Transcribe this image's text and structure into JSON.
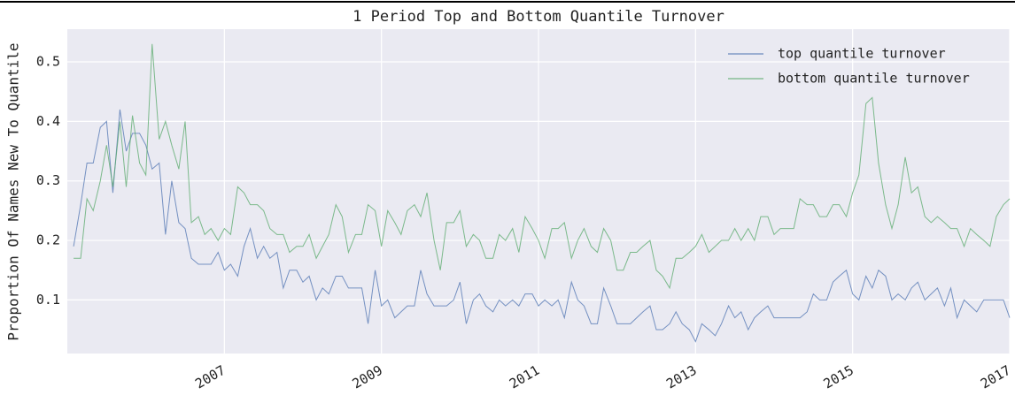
{
  "chart_data": {
    "type": "line",
    "title": "1 Period Top and Bottom Quantile Turnover",
    "y_label": "Proportion Of Names New To Quantile",
    "x": [
      2005.08,
      2005.17,
      2005.25,
      2005.33,
      2005.42,
      2005.5,
      2005.58,
      2005.67,
      2005.75,
      2005.83,
      2005.92,
      2006,
      2006.08,
      2006.17,
      2006.25,
      2006.33,
      2006.42,
      2006.5,
      2006.58,
      2006.67,
      2006.75,
      2006.83,
      2006.92,
      2007,
      2007.08,
      2007.17,
      2007.25,
      2007.33,
      2007.42,
      2007.5,
      2007.58,
      2007.67,
      2007.75,
      2007.83,
      2007.92,
      2008,
      2008.08,
      2008.17,
      2008.25,
      2008.33,
      2008.42,
      2008.5,
      2008.58,
      2008.67,
      2008.75,
      2008.83,
      2008.92,
      2009,
      2009.08,
      2009.17,
      2009.25,
      2009.33,
      2009.42,
      2009.5,
      2009.58,
      2009.67,
      2009.75,
      2009.83,
      2009.92,
      2010,
      2010.08,
      2010.17,
      2010.25,
      2010.33,
      2010.42,
      2010.5,
      2010.58,
      2010.67,
      2010.75,
      2010.83,
      2010.92,
      2011,
      2011.08,
      2011.17,
      2011.25,
      2011.33,
      2011.42,
      2011.5,
      2011.58,
      2011.67,
      2011.75,
      2011.83,
      2011.92,
      2012,
      2012.08,
      2012.17,
      2012.25,
      2012.33,
      2012.42,
      2012.5,
      2012.58,
      2012.67,
      2012.75,
      2012.83,
      2012.92,
      2013,
      2013.08,
      2013.17,
      2013.25,
      2013.33,
      2013.42,
      2013.5,
      2013.58,
      2013.67,
      2013.75,
      2013.83,
      2013.92,
      2014,
      2014.08,
      2014.17,
      2014.25,
      2014.33,
      2014.42,
      2014.5,
      2014.58,
      2014.67,
      2014.75,
      2014.83,
      2014.92,
      2015,
      2015.08,
      2015.17,
      2015.25,
      2015.33,
      2015.42,
      2015.5,
      2015.58,
      2015.67,
      2015.75,
      2015.83,
      2015.92,
      2016,
      2016.08,
      2016.17,
      2016.25,
      2016.33,
      2016.42,
      2016.5,
      2016.58,
      2016.67,
      2016.75,
      2016.83,
      2016.92,
      2017
    ],
    "series": [
      {
        "name": "top quantile turnover",
        "color": "#4c72b0",
        "values": [
          0.19,
          0.26,
          0.33,
          0.33,
          0.39,
          0.4,
          0.28,
          0.42,
          0.35,
          0.38,
          0.38,
          0.36,
          0.32,
          0.33,
          0.21,
          0.3,
          0.23,
          0.22,
          0.17,
          0.16,
          0.16,
          0.16,
          0.18,
          0.15,
          0.16,
          0.14,
          0.19,
          0.22,
          0.17,
          0.19,
          0.17,
          0.18,
          0.12,
          0.15,
          0.15,
          0.13,
          0.14,
          0.1,
          0.12,
          0.11,
          0.14,
          0.14,
          0.12,
          0.12,
          0.12,
          0.06,
          0.15,
          0.09,
          0.1,
          0.07,
          0.08,
          0.09,
          0.09,
          0.15,
          0.11,
          0.09,
          0.09,
          0.09,
          0.1,
          0.13,
          0.06,
          0.1,
          0.11,
          0.09,
          0.08,
          0.1,
          0.09,
          0.1,
          0.09,
          0.11,
          0.11,
          0.09,
          0.1,
          0.09,
          0.1,
          0.07,
          0.13,
          0.1,
          0.09,
          0.06,
          0.06,
          0.12,
          0.09,
          0.06,
          0.06,
          0.06,
          0.07,
          0.08,
          0.09,
          0.05,
          0.05,
          0.06,
          0.08,
          0.06,
          0.05,
          0.03,
          0.06,
          0.05,
          0.04,
          0.06,
          0.09,
          0.07,
          0.08,
          0.05,
          0.07,
          0.08,
          0.09,
          0.07,
          0.07,
          0.07,
          0.07,
          0.07,
          0.08,
          0.11,
          0.1,
          0.1,
          0.13,
          0.14,
          0.15,
          0.11,
          0.1,
          0.14,
          0.12,
          0.15,
          0.14,
          0.1,
          0.11,
          0.1,
          0.12,
          0.13,
          0.1,
          0.11,
          0.12,
          0.09,
          0.12,
          0.07,
          0.1,
          0.09,
          0.08,
          0.1,
          0.1,
          0.1,
          0.1,
          0.07
        ]
      },
      {
        "name": "bottom quantile turnover",
        "color": "#55a868",
        "values": [
          0.17,
          0.17,
          0.27,
          0.25,
          0.3,
          0.36,
          0.29,
          0.4,
          0.29,
          0.41,
          0.33,
          0.31,
          0.53,
          0.37,
          0.4,
          0.36,
          0.32,
          0.4,
          0.23,
          0.24,
          0.21,
          0.22,
          0.2,
          0.22,
          0.21,
          0.29,
          0.28,
          0.26,
          0.26,
          0.25,
          0.22,
          0.21,
          0.21,
          0.18,
          0.19,
          0.19,
          0.21,
          0.17,
          0.19,
          0.21,
          0.26,
          0.24,
          0.18,
          0.21,
          0.21,
          0.26,
          0.25,
          0.19,
          0.25,
          0.23,
          0.21,
          0.25,
          0.26,
          0.24,
          0.28,
          0.2,
          0.15,
          0.23,
          0.23,
          0.25,
          0.19,
          0.21,
          0.2,
          0.17,
          0.17,
          0.21,
          0.2,
          0.22,
          0.18,
          0.24,
          0.22,
          0.2,
          0.17,
          0.22,
          0.22,
          0.23,
          0.17,
          0.2,
          0.22,
          0.19,
          0.18,
          0.22,
          0.2,
          0.15,
          0.15,
          0.18,
          0.18,
          0.19,
          0.2,
          0.15,
          0.14,
          0.12,
          0.17,
          0.17,
          0.18,
          0.19,
          0.21,
          0.18,
          0.19,
          0.2,
          0.2,
          0.22,
          0.2,
          0.22,
          0.2,
          0.24,
          0.24,
          0.21,
          0.22,
          0.22,
          0.22,
          0.27,
          0.26,
          0.26,
          0.24,
          0.24,
          0.26,
          0.26,
          0.24,
          0.28,
          0.31,
          0.43,
          0.44,
          0.33,
          0.26,
          0.22,
          0.26,
          0.34,
          0.28,
          0.29,
          0.24,
          0.23,
          0.24,
          0.23,
          0.22,
          0.22,
          0.19,
          0.22,
          0.21,
          0.2,
          0.19,
          0.24,
          0.26,
          0.27
        ]
      }
    ],
    "xlim": [
      2005.0,
      2017.0
    ],
    "xticks": [
      2007,
      2009,
      2011,
      2013,
      2015,
      2017
    ],
    "ylim": [
      0.01,
      0.555
    ],
    "yticks": [
      0.1,
      0.2,
      0.3,
      0.4,
      0.5
    ],
    "grid": true,
    "legend": "upper right"
  }
}
